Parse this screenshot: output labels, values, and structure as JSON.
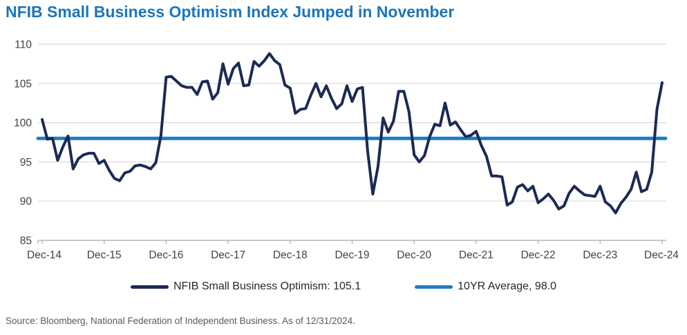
{
  "title": "NFIB Small Business Optimism Index Jumped in November",
  "source": "Source: Bloomberg, National Federation of Independent Business. As of 12/31/2024.",
  "colors": {
    "title_blue": "#1b75bc",
    "series_navy": "#1b2a55",
    "average_blue": "#1b7fc4",
    "gridline": "#d9d9d9",
    "axis_line": "#a6a6a6",
    "axis_label": "#404040",
    "legend_text": "#262626",
    "source_text": "#595959"
  },
  "legend": [
    {
      "label": "NFIB Small Business Optimism: 105.1",
      "color": "#1b2a55"
    },
    {
      "label": "10YR Average, 98.0",
      "color": "#1b7fc4"
    }
  ],
  "chart_data": {
    "type": "line",
    "title": "NFIB Small Business Optimism Index Jumped in November",
    "xlabel": "",
    "ylabel": "",
    "ylim": [
      85,
      110
    ],
    "y_ticks": [
      85,
      90,
      95,
      100,
      105,
      110
    ],
    "x_tick_labels": [
      "Dec-14",
      "Dec-15",
      "Dec-16",
      "Dec-17",
      "Dec-18",
      "Dec-19",
      "Dec-20",
      "Dec-21",
      "Dec-22",
      "Dec-23",
      "Dec-24"
    ],
    "frequency": "monthly",
    "x_start": "Dec-14",
    "x_end": "Dec-24",
    "grid": "horizontal",
    "legend_position": "bottom",
    "series": [
      {
        "name": "NFIB Small Business Optimism",
        "last_value": 105.1,
        "values": [
          100.4,
          97.9,
          98.0,
          95.2,
          96.9,
          98.3,
          94.1,
          95.4,
          95.9,
          96.1,
          96.1,
          94.8,
          95.2,
          93.9,
          92.9,
          92.6,
          93.6,
          93.8,
          94.5,
          94.6,
          94.4,
          94.1,
          94.9,
          98.4,
          105.8,
          105.9,
          105.3,
          104.7,
          104.5,
          104.5,
          103.6,
          105.2,
          105.3,
          103.0,
          103.8,
          107.5,
          104.9,
          106.9,
          107.6,
          104.7,
          104.8,
          107.8,
          107.2,
          107.9,
          108.8,
          107.9,
          107.4,
          104.8,
          104.4,
          101.2,
          101.7,
          101.8,
          103.5,
          105.0,
          103.3,
          104.7,
          103.1,
          101.8,
          102.4,
          104.7,
          102.7,
          104.3,
          104.5,
          96.4,
          90.9,
          94.4,
          100.6,
          98.8,
          100.2,
          104.0,
          104.0,
          101.4,
          95.9,
          95.0,
          95.8,
          98.2,
          99.8,
          99.6,
          102.5,
          99.7,
          100.1,
          99.1,
          98.2,
          98.4,
          98.9,
          97.1,
          95.7,
          93.2,
          93.2,
          93.1,
          89.5,
          89.9,
          91.8,
          92.1,
          91.3,
          91.9,
          89.8,
          90.3,
          90.9,
          90.1,
          89.0,
          89.4,
          91.0,
          91.9,
          91.3,
          90.8,
          90.7,
          90.6,
          91.9,
          89.9,
          89.4,
          88.5,
          89.7,
          90.5,
          91.5,
          93.7,
          91.2,
          91.5,
          93.7,
          101.7,
          105.1
        ]
      },
      {
        "name": "10YR Average",
        "value": 98.0
      }
    ]
  }
}
